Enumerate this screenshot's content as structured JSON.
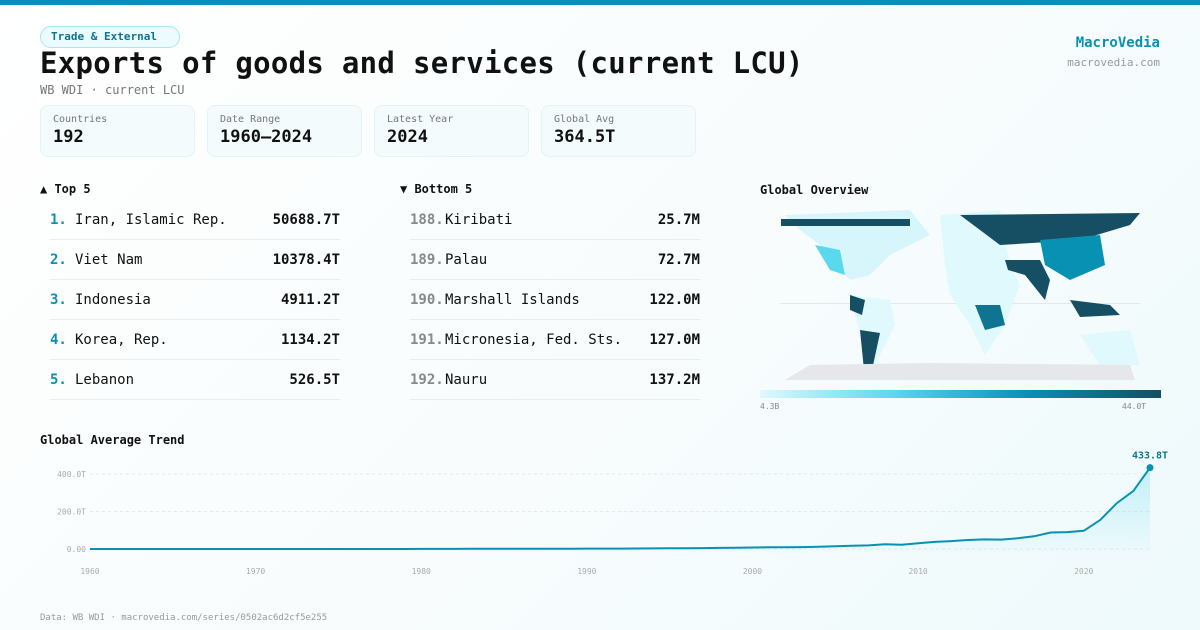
{
  "header": {
    "category": "Trade & External",
    "title": "Exports of goods and services (current LCU)",
    "subtitle": "WB WDI · current LCU",
    "brand": "MacroVedia",
    "brand_url": "macrovedia.com"
  },
  "stats": [
    {
      "label": "Countries",
      "value": "192"
    },
    {
      "label": "Date Range",
      "value": "1960–2024"
    },
    {
      "label": "Latest Year",
      "value": "2024"
    },
    {
      "label": "Global Avg",
      "value": "364.5T"
    }
  ],
  "top5": {
    "title": "▲ Top 5",
    "items": [
      {
        "rank": "1.",
        "name": "Iran, Islamic Rep.",
        "value": "50688.7T"
      },
      {
        "rank": "2.",
        "name": "Viet Nam",
        "value": "10378.4T"
      },
      {
        "rank": "3.",
        "name": "Indonesia",
        "value": "4911.2T"
      },
      {
        "rank": "4.",
        "name": "Korea, Rep.",
        "value": "1134.2T"
      },
      {
        "rank": "5.",
        "name": "Lebanon",
        "value": "526.5T"
      }
    ]
  },
  "bottom5": {
    "title": "▼ Bottom 5",
    "items": [
      {
        "rank": "188.",
        "name": "Kiribati",
        "value": "25.7M"
      },
      {
        "rank": "189.",
        "name": "Palau",
        "value": "72.7M"
      },
      {
        "rank": "190.",
        "name": "Marshall Islands",
        "value": "122.0M"
      },
      {
        "rank": "191.",
        "name": "Micronesia, Fed. Sts.",
        "value": "127.0M"
      },
      {
        "rank": "192.",
        "name": "Nauru",
        "value": "137.2M"
      }
    ]
  },
  "map": {
    "title": "Global Overview",
    "legend_min": "4.3B",
    "legend_max": "44.0T",
    "colors": [
      "#e0f9fd",
      "#5ad8ee",
      "#0891b2",
      "#164e63"
    ]
  },
  "chart_data": {
    "type": "area",
    "title": "Global Average Trend",
    "ylim": [
      0,
      433.8
    ],
    "yticks": [
      "0.00",
      "200.0T",
      "400.0T"
    ],
    "ytick_values": [
      0,
      200,
      400
    ],
    "xticks": [
      "1960",
      "1970",
      "1980",
      "1990",
      "2000",
      "2010",
      "2020"
    ],
    "x": [
      1960,
      1961,
      1962,
      1963,
      1964,
      1965,
      1966,
      1967,
      1968,
      1969,
      1970,
      1971,
      1972,
      1973,
      1974,
      1975,
      1976,
      1977,
      1978,
      1979,
      1980,
      1981,
      1982,
      1983,
      1984,
      1985,
      1986,
      1987,
      1988,
      1989,
      1990,
      1991,
      1992,
      1993,
      1994,
      1995,
      1996,
      1997,
      1998,
      1999,
      2000,
      2001,
      2002,
      2003,
      2004,
      2005,
      2006,
      2007,
      2008,
      2009,
      2010,
      2011,
      2012,
      2013,
      2014,
      2015,
      2016,
      2017,
      2018,
      2019,
      2020,
      2021,
      2022,
      2023,
      2024
    ],
    "values": [
      0,
      0,
      0,
      0,
      0,
      0,
      0,
      0,
      0,
      0,
      0,
      0,
      0,
      0,
      0,
      0,
      0,
      0,
      0,
      0,
      0.5,
      0.5,
      0.5,
      1,
      1,
      1,
      1,
      1,
      1,
      1.5,
      2,
      2,
      2,
      2.5,
      3,
      3.5,
      4,
      5,
      6,
      6.5,
      8,
      9,
      9,
      10,
      12,
      15,
      17,
      19,
      25,
      23,
      31,
      38,
      42,
      48,
      51,
      50,
      57,
      68,
      88,
      90,
      97,
      155,
      245,
      310,
      433.8
    ],
    "last_label": "433.8T",
    "color": "#0891b2"
  },
  "footer": "Data: WB WDI · macrovedia.com/series/0502ac6d2cf5e255"
}
